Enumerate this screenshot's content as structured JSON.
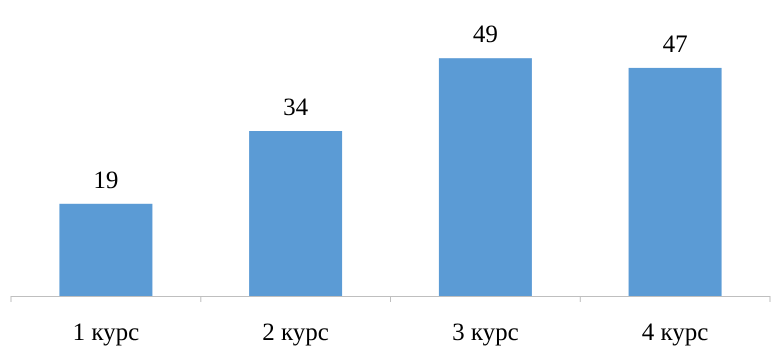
{
  "chart_data": {
    "type": "bar",
    "categories": [
      "1 курс",
      "2 курс",
      "3 курс",
      "4 курс"
    ],
    "values": [
      19,
      34,
      49,
      47
    ],
    "data_labels": [
      "19",
      "34",
      "49",
      "47"
    ],
    "title": "",
    "xlabel": "",
    "ylabel": "",
    "ylim": [
      0,
      61
    ],
    "grid": false,
    "legend": "none",
    "bar_color": "#5b9bd5",
    "axis_color": "#bfbfbf"
  }
}
